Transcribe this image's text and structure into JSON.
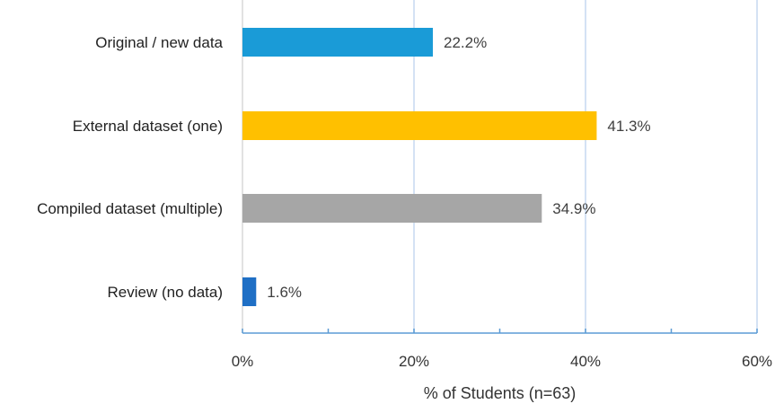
{
  "chart_data": {
    "type": "bar",
    "orientation": "horizontal",
    "categories": [
      "Original / new data",
      "External dataset (one)",
      "Compiled dataset (multiple)",
      "Review (no data)"
    ],
    "values": [
      22.2,
      41.3,
      34.9,
      1.6
    ],
    "data_labels": [
      "22.2%",
      "41.3%",
      "34.9%",
      "1.6%"
    ],
    "colors": [
      "#1a9bd7",
      "#ffc000",
      "#a6a6a6",
      "#1f6fc5"
    ],
    "title": "",
    "xlabel": "% of Students (n=63)",
    "ylabel": "",
    "xlim": [
      0,
      60
    ],
    "xticks": [
      0,
      20,
      40,
      60
    ],
    "xtick_labels": [
      "0%",
      "20%",
      "40%",
      "60%"
    ],
    "grid": "vertical major gridlines",
    "legend": "none"
  }
}
